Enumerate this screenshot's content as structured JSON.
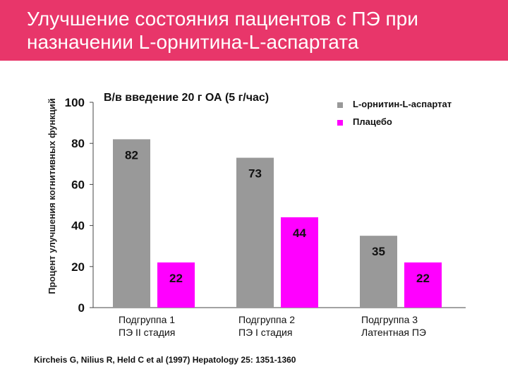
{
  "header": {
    "title": "Улучшение состояния пациентов с ПЭ при назначении L-орнитина-L-аспартата",
    "color": "#e8366a"
  },
  "subtitle": "В/в введение 20 г ОА (5 г/час)",
  "citation": "Kircheis G, Nilius R, Held C et al (1997) Hepatology 25: 1351-1360",
  "chart_data": {
    "type": "bar",
    "title": "",
    "ylabel": "Процент улучшения когнитивных функций",
    "xlabel": "",
    "ylim": [
      0,
      100
    ],
    "yticks": [
      "0",
      "20",
      "40",
      "60",
      "80",
      "100"
    ],
    "categories": [
      {
        "line1": "Подгруппа 1",
        "line2": "ПЭ II стадия"
      },
      {
        "line1": "Подгруппа 2",
        "line2": "ПЭ I стадия"
      },
      {
        "line1": "Подгруппа 3",
        "line2": "Латентная ПЭ"
      }
    ],
    "series": [
      {
        "name": "L-орнитин-L-аспартат",
        "color": "#999999",
        "values": [
          82,
          73,
          35
        ],
        "labels": [
          "82",
          "73",
          "35"
        ]
      },
      {
        "name": "Плацебо",
        "color": "#ff00ff",
        "values": [
          22,
          44,
          22
        ],
        "labels": [
          "22",
          "44",
          "22"
        ]
      }
    ],
    "legend": "top-right",
    "grid": false
  }
}
